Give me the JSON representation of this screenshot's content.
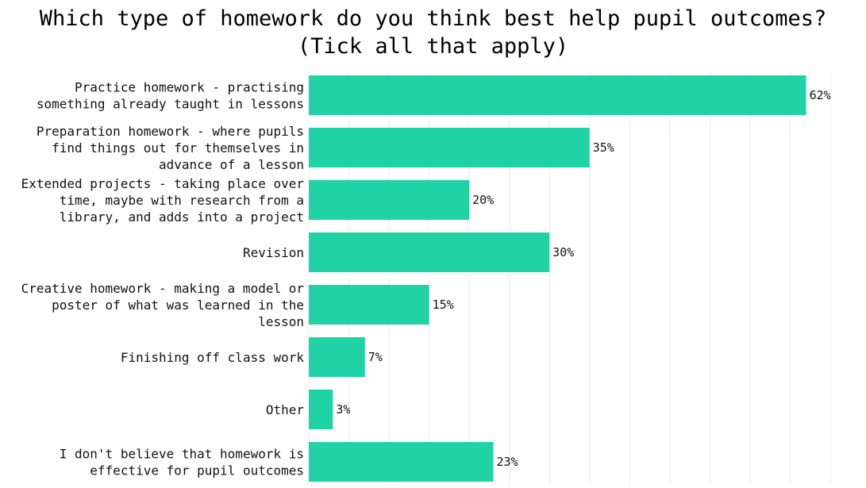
{
  "chart_data": {
    "type": "bar",
    "orientation": "horizontal",
    "title": [
      "Which type of homework do you think best help pupil outcomes?",
      "(Tick all that apply)"
    ],
    "categories": [
      [
        "Practice homework - practising",
        "something already taught in lessons"
      ],
      [
        "Preparation homework - where pupils",
        "find things out for themselves in",
        "advance of a lesson"
      ],
      [
        "Extended projects - taking place over",
        "time, maybe with research from a",
        "library, and adds into a project"
      ],
      [
        "Revision"
      ],
      [
        "Creative homework - making a model or",
        "poster of what was learned in the",
        "lesson"
      ],
      [
        "Finishing off class work"
      ],
      [
        "Other"
      ],
      [
        "I don't believe that homework is",
        "effective for pupil outcomes"
      ]
    ],
    "values": [
      62,
      35,
      20,
      30,
      15,
      7,
      3,
      23
    ],
    "value_labels": [
      "62%",
      "35%",
      "20%",
      "30%",
      "15%",
      "7%",
      "3%",
      "23%"
    ],
    "xlim": [
      0,
      66
    ],
    "grid": true,
    "bar_color": "#1fd3a6"
  }
}
